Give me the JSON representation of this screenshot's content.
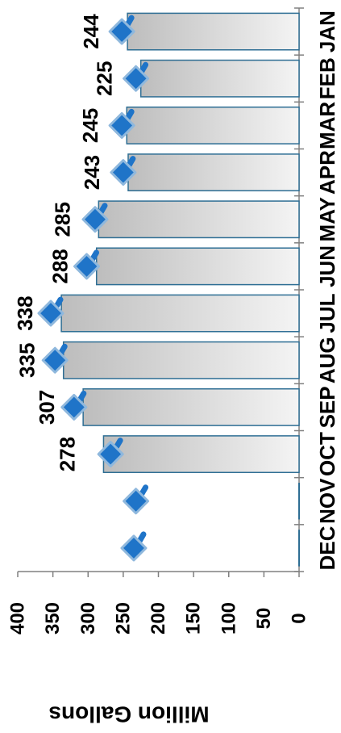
{
  "chart_data": {
    "type": "bar",
    "ylabel": "Million Gallons",
    "categories": [
      "JAN",
      "FEB",
      "MAR",
      "APR",
      "MAY",
      "JUN",
      "JUL",
      "AUG",
      "SEP",
      "OCT",
      "NOV",
      "DEC"
    ],
    "ylim": [
      0,
      400
    ],
    "yticks": [
      0,
      50,
      100,
      150,
      200,
      250,
      300,
      350,
      400
    ],
    "grid": false,
    "series": [
      {
        "type": "bar",
        "values": [
          244,
          225,
          245,
          243,
          285,
          288,
          338,
          335,
          307,
          278,
          0,
          0
        ],
        "data_labels": [
          "244",
          "225",
          "245",
          "243",
          "285",
          "288",
          "338",
          "335",
          "307",
          "278",
          "",
          ""
        ]
      },
      {
        "type": "line-markers",
        "marker": "diamond",
        "values": [
          252,
          232,
          252,
          250,
          290,
          302,
          353,
          347,
          320,
          268,
          232,
          235
        ]
      }
    ],
    "colors": {
      "bar_fill": "#e8e8e8",
      "bar_stroke": "#2e6e94",
      "marker_fill": "#1f74c8",
      "marker_stroke": "#8fb8dd",
      "axis": "#808080"
    }
  }
}
